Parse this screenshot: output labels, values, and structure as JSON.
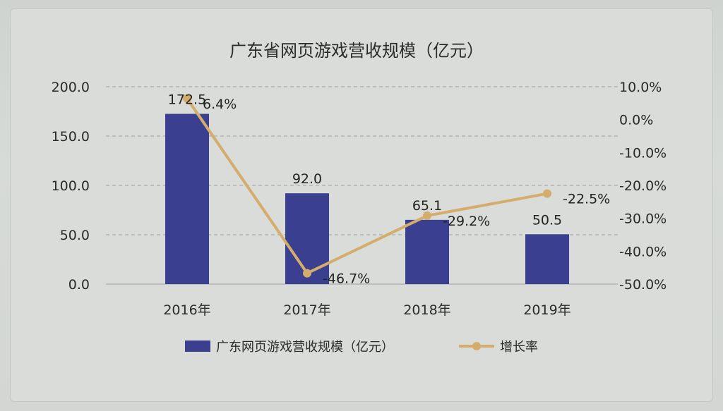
{
  "chart_data": {
    "type": "bar",
    "title": "广东省网页游戏营收规模（亿元）",
    "categories": [
      "2016年",
      "2017年",
      "2018年",
      "2019年"
    ],
    "series": [
      {
        "name": "广东网页游戏营收规模（亿元）",
        "type": "bar",
        "axis": "left",
        "values": [
          172.5,
          92.0,
          65.1,
          50.5
        ],
        "labels": [
          "172.5",
          "92.0",
          "65.1",
          "50.5"
        ]
      },
      {
        "name": "增长率",
        "type": "line",
        "axis": "right",
        "values": [
          6.4,
          -46.7,
          -29.2,
          -22.5
        ],
        "labels": [
          "6.4%",
          "-46.7%",
          "-29.2%",
          "-22.5%"
        ]
      }
    ],
    "ylim_left": [
      0,
      200
    ],
    "yticks_left": [
      "0.0",
      "50.0",
      "100.0",
      "150.0",
      "200.0"
    ],
    "ylim_right": [
      -50,
      10
    ],
    "yticks_right": [
      "-50.0%",
      "-40.0%",
      "-30.0%",
      "-20.0%",
      "-10.0%",
      "0.0%",
      "10.0%"
    ],
    "grid": "dashed-horizontal",
    "legend_position": "bottom",
    "colors": {
      "bar": "#3b3f8f",
      "line": "#d4ad6c"
    }
  }
}
